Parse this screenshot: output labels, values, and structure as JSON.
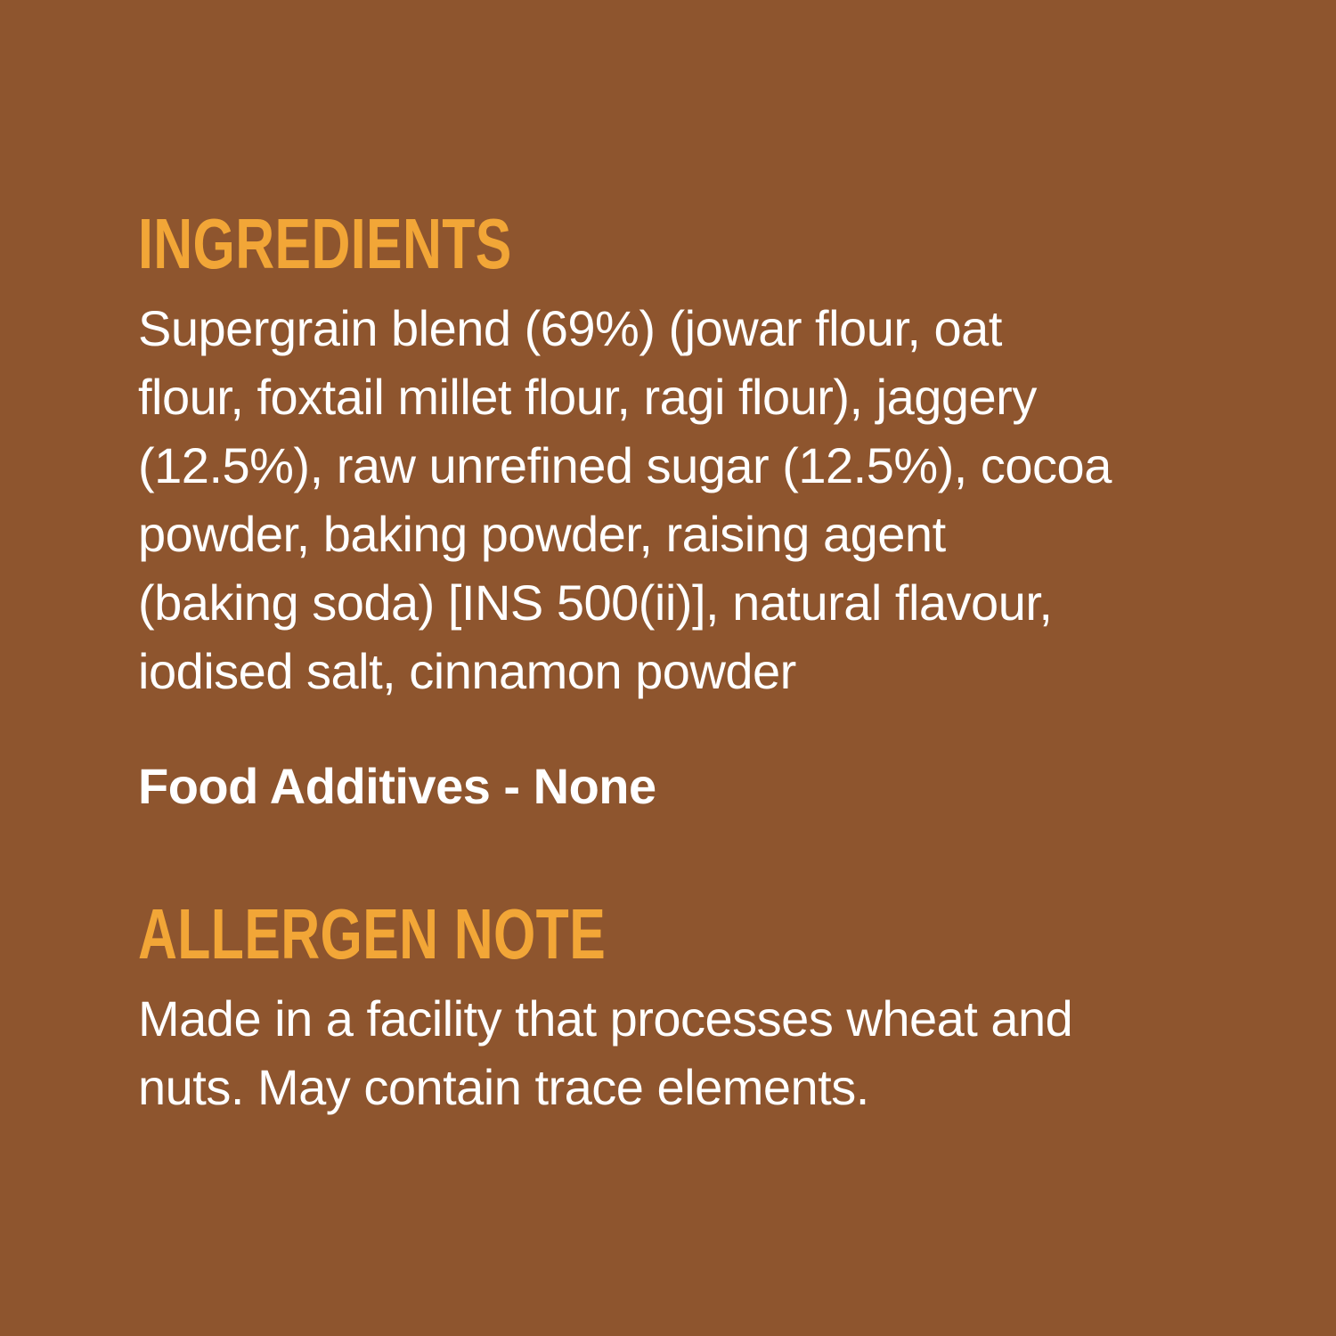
{
  "panel": {
    "background_color": "#8E552E",
    "heading_color": "#F2A637",
    "body_text_color": "#FFFFFF"
  },
  "ingredients": {
    "heading": "INGREDIENTS",
    "lines": [
      "Supergrain blend (69%) (jowar flour, oat",
      "flour, foxtail millet flour, ragi flour), jaggery",
      "(12.5%), raw unrefined sugar (12.5%), cocoa",
      "powder, baking powder, raising agent",
      "(baking soda) [INS 500(ii)], natural flavour,",
      "iodised salt, cinnamon powder"
    ],
    "food_additives": "Food Additives - None"
  },
  "allergen_note": {
    "heading": "ALLERGEN NOTE",
    "lines": [
      "Made in a facility that processes wheat and",
      "nuts. May contain trace elements."
    ]
  }
}
